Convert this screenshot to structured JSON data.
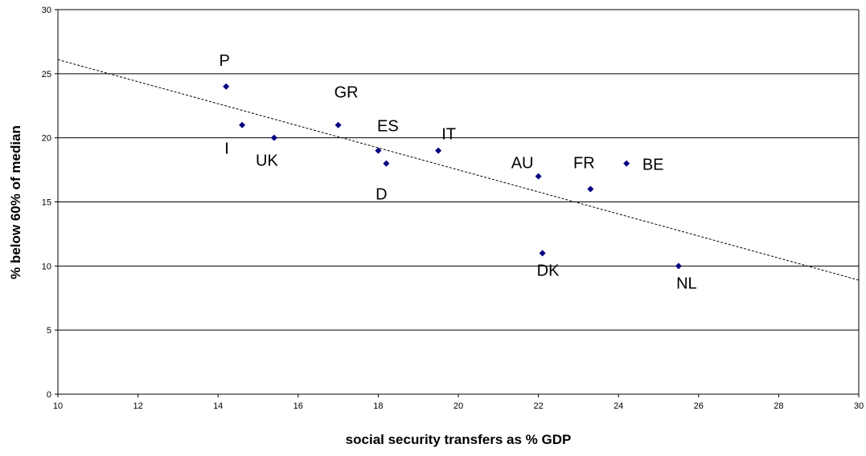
{
  "chart_data": {
    "type": "scatter",
    "title": "",
    "xlabel": "social security transfers as % GDP",
    "ylabel": "% below 60% of median",
    "xlim": [
      10,
      30
    ],
    "ylim": [
      0,
      30
    ],
    "x_ticks": [
      10,
      12,
      14,
      16,
      18,
      20,
      22,
      24,
      26,
      28,
      30
    ],
    "y_ticks": [
      0,
      5,
      10,
      15,
      20,
      25,
      30
    ],
    "grid": "horizontal",
    "legend": "none",
    "marker_color": "#000080",
    "points": [
      {
        "label": "P",
        "x": 14.2,
        "y": 24
      },
      {
        "label": "I",
        "x": 14.6,
        "y": 21
      },
      {
        "label": "UK",
        "x": 15.4,
        "y": 20
      },
      {
        "label": "GR",
        "x": 17.0,
        "y": 21
      },
      {
        "label": "ES",
        "x": 18.0,
        "y": 19
      },
      {
        "label": "D",
        "x": 18.2,
        "y": 18
      },
      {
        "label": "IT",
        "x": 19.5,
        "y": 19
      },
      {
        "label": "AU",
        "x": 22.0,
        "y": 17
      },
      {
        "label": "DK",
        "x": 22.1,
        "y": 11
      },
      {
        "label": "FR",
        "x": 23.3,
        "y": 16
      },
      {
        "label": "BE",
        "x": 24.2,
        "y": 18
      },
      {
        "label": "NL",
        "x": 25.5,
        "y": 10
      }
    ],
    "trendline": {
      "style": "dashed",
      "x": [
        10,
        30
      ],
      "y": [
        26.1,
        8.9
      ]
    }
  }
}
